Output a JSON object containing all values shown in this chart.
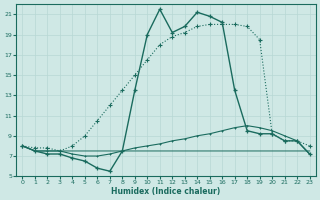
{
  "xlabel": "Humidex (Indice chaleur)",
  "xlim": [
    -0.5,
    23.5
  ],
  "ylim": [
    5,
    22
  ],
  "yticks": [
    5,
    7,
    9,
    11,
    13,
    15,
    17,
    19,
    21
  ],
  "xticks": [
    0,
    1,
    2,
    3,
    4,
    5,
    6,
    7,
    8,
    9,
    10,
    11,
    12,
    13,
    14,
    15,
    16,
    17,
    18,
    19,
    20,
    21,
    22,
    23
  ],
  "bg_color": "#cfe8e5",
  "line_color": "#1a6b5e",
  "grid_color": "#b8d8d4",
  "curve_dotted_x": [
    0,
    1,
    2,
    3,
    4,
    5,
    6,
    7,
    8,
    9,
    10,
    11,
    12,
    13,
    14,
    15,
    16,
    17,
    18,
    19,
    20,
    21,
    22,
    23
  ],
  "curve_dotted_y": [
    8.0,
    7.8,
    7.8,
    7.5,
    8.0,
    9.0,
    10.5,
    12.0,
    13.5,
    15.0,
    16.5,
    18.0,
    18.8,
    19.2,
    19.8,
    20.0,
    20.0,
    20.0,
    19.8,
    18.5,
    9.2,
    8.5,
    8.5,
    8.0
  ],
  "curve_peak_x": [
    0,
    1,
    2,
    3,
    4,
    5,
    6,
    7,
    8,
    9,
    10,
    11,
    12,
    13,
    14,
    15,
    16,
    17,
    18,
    19,
    20,
    21,
    22,
    23
  ],
  "curve_peak_y": [
    8.0,
    7.5,
    7.2,
    7.2,
    6.8,
    6.5,
    5.8,
    5.5,
    7.5,
    13.5,
    19.0,
    21.5,
    19.2,
    19.8,
    21.2,
    20.8,
    20.2,
    13.5,
    9.5,
    9.2,
    9.2,
    8.5,
    8.5,
    7.2
  ],
  "curve_rise_x": [
    0,
    1,
    2,
    3,
    4,
    5,
    6,
    7,
    8,
    9,
    10,
    11,
    12,
    13,
    14,
    15,
    16,
    17,
    18,
    19,
    20,
    21,
    22,
    23
  ],
  "curve_rise_y": [
    8.0,
    7.5,
    7.5,
    7.5,
    7.2,
    7.0,
    7.0,
    7.2,
    7.5,
    7.8,
    8.0,
    8.2,
    8.5,
    8.7,
    9.0,
    9.2,
    9.5,
    9.8,
    10.0,
    9.8,
    9.5,
    9.0,
    8.5,
    7.2
  ],
  "curve_flat_x": [
    0,
    1,
    2,
    3,
    4,
    5,
    6,
    7,
    8,
    9,
    10,
    11,
    12,
    13,
    14,
    15,
    16,
    17,
    18,
    19,
    20,
    21,
    22,
    23
  ],
  "curve_flat_y": [
    8.0,
    7.5,
    7.5,
    7.5,
    7.5,
    7.5,
    7.5,
    7.5,
    7.5,
    7.5,
    7.5,
    7.5,
    7.5,
    7.5,
    7.5,
    7.5,
    7.5,
    7.5,
    7.5,
    7.5,
    7.5,
    7.5,
    7.5,
    7.5
  ]
}
